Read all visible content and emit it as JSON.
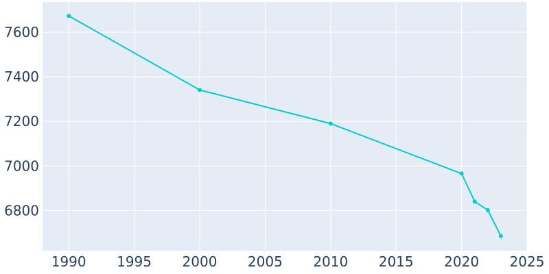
{
  "chart_data": {
    "type": "line",
    "title": "",
    "xlabel": "",
    "ylabel": "",
    "x": [
      1990,
      2000,
      2010,
      2020,
      2021,
      2022,
      2023
    ],
    "series": [
      {
        "values": [
          7673,
          7341,
          7190,
          6966,
          6841,
          6802,
          6686
        ],
        "color": "#00cdd0"
      }
    ],
    "xlim": [
      1988,
      2025
    ],
    "ylim": [
      6620,
      7735
    ],
    "x_ticks": [
      1990,
      1995,
      2000,
      2005,
      2010,
      2015,
      2020,
      2025
    ],
    "y_ticks": [
      6800,
      7000,
      7200,
      7400,
      7600
    ],
    "grid": true,
    "legend": "none",
    "colors": {
      "plot_background": "#e5ecf6",
      "grid": "#ffffff",
      "axis_text": "#2a3f5f",
      "line": "#00cdd0"
    }
  }
}
